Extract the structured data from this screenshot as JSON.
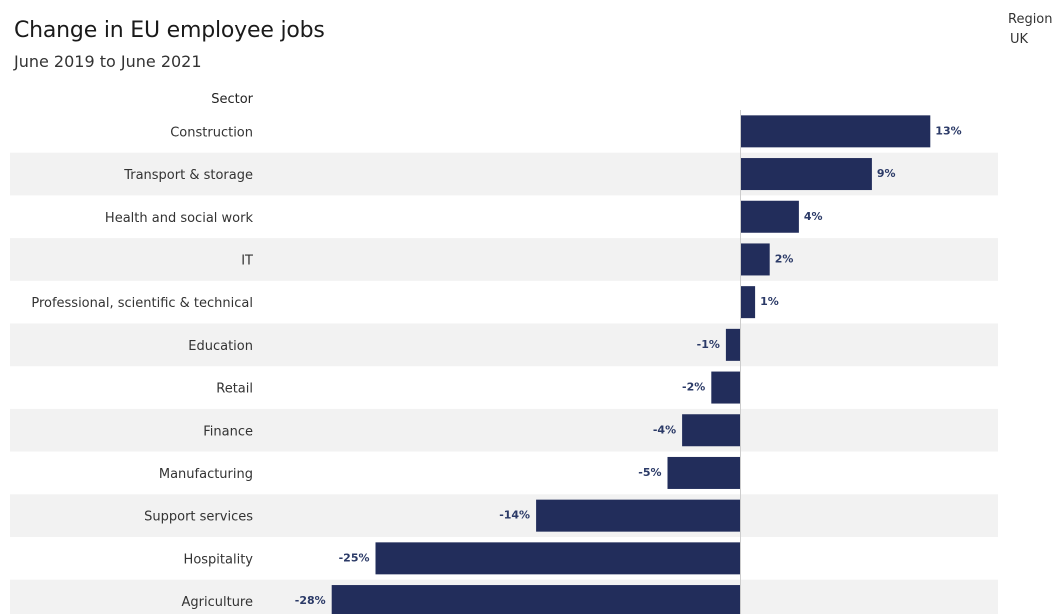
{
  "header": {
    "title": "Change in EU employee jobs",
    "subtitle": "June 2019 to June 2021"
  },
  "filter": {
    "label": "Region",
    "value": "UK"
  },
  "axis": {
    "category_header": "Sector"
  },
  "colors": {
    "bar": "#222d5b",
    "band": "#f2f2f2",
    "zero_line": "#cccccc"
  },
  "chart_data": {
    "type": "bar",
    "orientation": "horizontal",
    "title": "Change in EU employee jobs",
    "subtitle": "June 2019 to June 2021",
    "ylabel": "Sector",
    "unit": "%",
    "xlim": [
      -28,
      13
    ],
    "grid": false,
    "categories": [
      "Construction",
      "Transport & storage",
      "Health and social work",
      "IT",
      "Professional, scientific & technical",
      "Education",
      "Retail",
      "Finance",
      "Manufacturing",
      "Support services",
      "Hospitality",
      "Agriculture"
    ],
    "values": [
      13,
      9,
      4,
      2,
      1,
      -1,
      -2,
      -4,
      -5,
      -14,
      -25,
      -28
    ],
    "labels": [
      "13%",
      "9%",
      "4%",
      "2%",
      "1%",
      "-1%",
      "-2%",
      "-4%",
      "-5%",
      "-14%",
      "-25%",
      "-28%"
    ]
  }
}
